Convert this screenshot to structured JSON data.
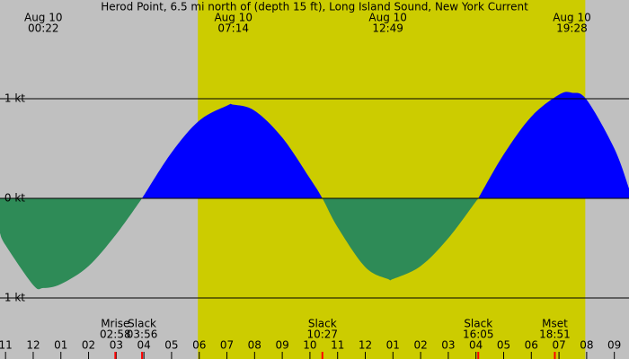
{
  "chart_data": {
    "type": "current",
    "title": "Herod Point, 6.5 mi north of (depth 15 ft), Long Island Sound, New York Current",
    "x": [
      -1.2,
      -1,
      0,
      0.367,
      1,
      2,
      3,
      3.933,
      4,
      5,
      6,
      7,
      7.233,
      8,
      9,
      10,
      10.45,
      11,
      12,
      12.817,
      13,
      14,
      15,
      16,
      16.083,
      17,
      18,
      19,
      19.467,
      20,
      21,
      21.53
    ],
    "values": [
      -0.35,
      -0.47,
      -0.87,
      -0.9,
      -0.86,
      -0.68,
      -0.36,
      0,
      0.03,
      0.46,
      0.78,
      0.93,
      0.94,
      0.88,
      0.61,
      0.2,
      0,
      -0.29,
      -0.69,
      -0.81,
      -0.81,
      -0.68,
      -0.4,
      -0.03,
      0,
      0.44,
      0.82,
      1.04,
      1.06,
      0.99,
      0.5,
      0.1
    ],
    "flood_color": "#0000ff",
    "ebb_color": "#2e8b57",
    "night_color": "#c0c0c0",
    "day_color": "#cccc00",
    "daylight": [
      5.95,
      19.95
    ],
    "xlim": [
      -1.2,
      21.53
    ],
    "ylim": [
      -1.5,
      2
    ],
    "yticks": [
      {
        "value": 1,
        "label": "1 kt"
      },
      {
        "value": 0,
        "label": "0 kt"
      },
      {
        "value": -1,
        "label": "-1 kt"
      }
    ],
    "xticks": [
      {
        "value": -1,
        "label": "11"
      },
      {
        "value": 0,
        "label": "12"
      },
      {
        "value": 1,
        "label": "01"
      },
      {
        "value": 2,
        "label": "02"
      },
      {
        "value": 3,
        "label": "03"
      },
      {
        "value": 4,
        "label": "04"
      },
      {
        "value": 5,
        "label": "05"
      },
      {
        "value": 6,
        "label": "06"
      },
      {
        "value": 7,
        "label": "07"
      },
      {
        "value": 8,
        "label": "08"
      },
      {
        "value": 9,
        "label": "09"
      },
      {
        "value": 10,
        "label": "10"
      },
      {
        "value": 11,
        "label": "11"
      },
      {
        "value": 12,
        "label": "12"
      },
      {
        "value": 13,
        "label": "01"
      },
      {
        "value": 14,
        "label": "02"
      },
      {
        "value": 15,
        "label": "03"
      },
      {
        "value": 16,
        "label": "04"
      },
      {
        "value": 17,
        "label": "05"
      },
      {
        "value": 18,
        "label": "06"
      },
      {
        "value": 19,
        "label": "07"
      },
      {
        "value": 20,
        "label": "08"
      },
      {
        "value": 21,
        "label": "09"
      }
    ],
    "extremes": [
      {
        "date": "Aug 10",
        "time": "00:22",
        "x": 0.367
      },
      {
        "date": "Aug 10",
        "time": "07:14",
        "x": 7.233
      },
      {
        "date": "Aug 10",
        "time": "12:49",
        "x": 12.817
      },
      {
        "date": "Aug 10",
        "time": "19:28",
        "x": 19.467
      }
    ],
    "events": [
      {
        "label": "Mrise",
        "time": "02:58",
        "x": 2.967
      },
      {
        "label": "Slack",
        "time": "03:56",
        "x": 3.933
      },
      {
        "label": "Slack",
        "time": "10:27",
        "x": 10.45
      },
      {
        "label": "Slack",
        "time": "16:05",
        "x": 16.083
      },
      {
        "label": "Mset",
        "time": "18:51",
        "x": 18.85
      }
    ]
  }
}
